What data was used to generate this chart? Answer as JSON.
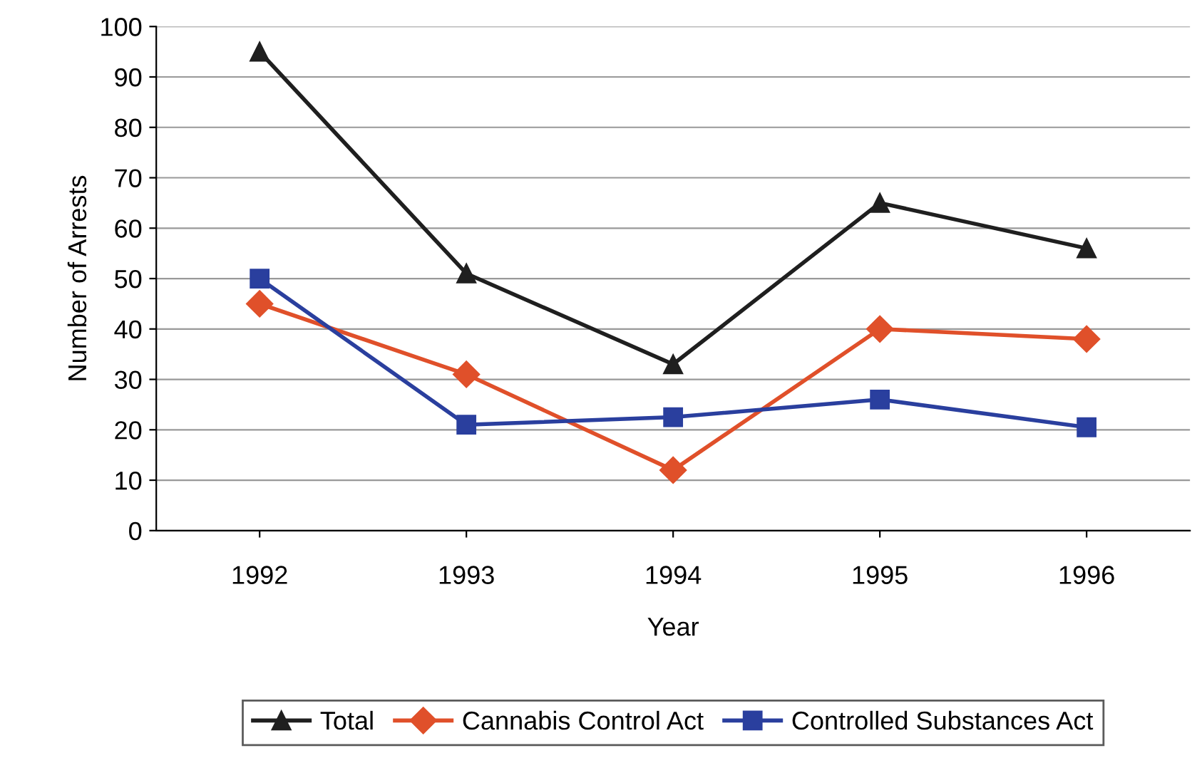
{
  "chart_data": {
    "type": "line",
    "xlabel": "Year",
    "ylabel": "Number of Arrests",
    "categories": [
      "1992",
      "1993",
      "1994",
      "1995",
      "1996"
    ],
    "series": [
      {
        "name": "Total",
        "color": "#1f1f1f",
        "marker": "triangle",
        "values": [
          95,
          51,
          33,
          65,
          56
        ]
      },
      {
        "name": "Cannabis Control Act",
        "color": "#e0502a",
        "marker": "diamond",
        "values": [
          45,
          31,
          12,
          40,
          38
        ]
      },
      {
        "name": "Controlled Substances Act",
        "color": "#2a3f9e",
        "marker": "square",
        "values": [
          50,
          21,
          22.5,
          26,
          20.5
        ]
      }
    ],
    "ylim": [
      0,
      100
    ],
    "yticks": [
      0,
      10,
      20,
      30,
      40,
      50,
      60,
      70,
      80,
      90,
      100
    ],
    "grid": "y",
    "legend": "bottom",
    "line_style": "solid"
  }
}
